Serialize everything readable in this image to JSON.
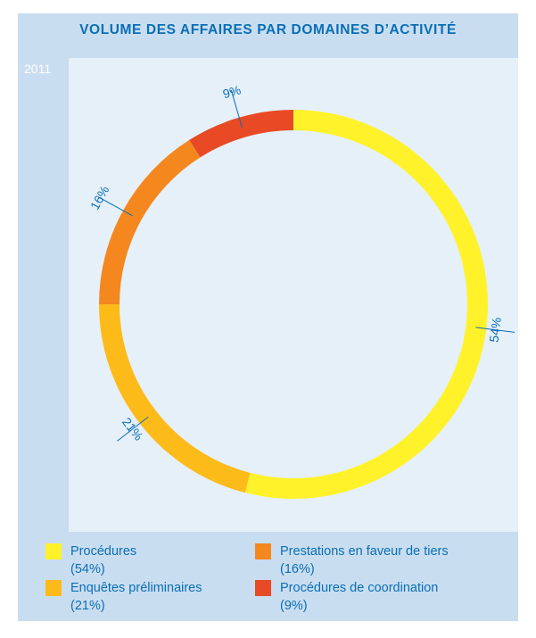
{
  "chart_data": {
    "type": "pie",
    "title": "VOLUME DES AFFAIRES PAR DOMAINES D’ACTIVITÉ",
    "year_label": "2011",
    "slices": [
      {
        "name": "Procédures",
        "value": 54,
        "label": "54%",
        "legend_pct": "(54%)",
        "color": "#fff22a"
      },
      {
        "name": "Enquêtes préliminaires",
        "value": 21,
        "label": "21%",
        "legend_pct": "(21%)",
        "color": "#fdbb1a"
      },
      {
        "name": "Prestations en faveur de tiers",
        "value": 16,
        "label": "16%",
        "legend_pct": "(16%)",
        "color": "#f5871f"
      },
      {
        "name": "Procédures de coordination",
        "value": 9,
        "label": "9%",
        "legend_pct": "(9%)",
        "color": "#e84a25"
      }
    ]
  }
}
